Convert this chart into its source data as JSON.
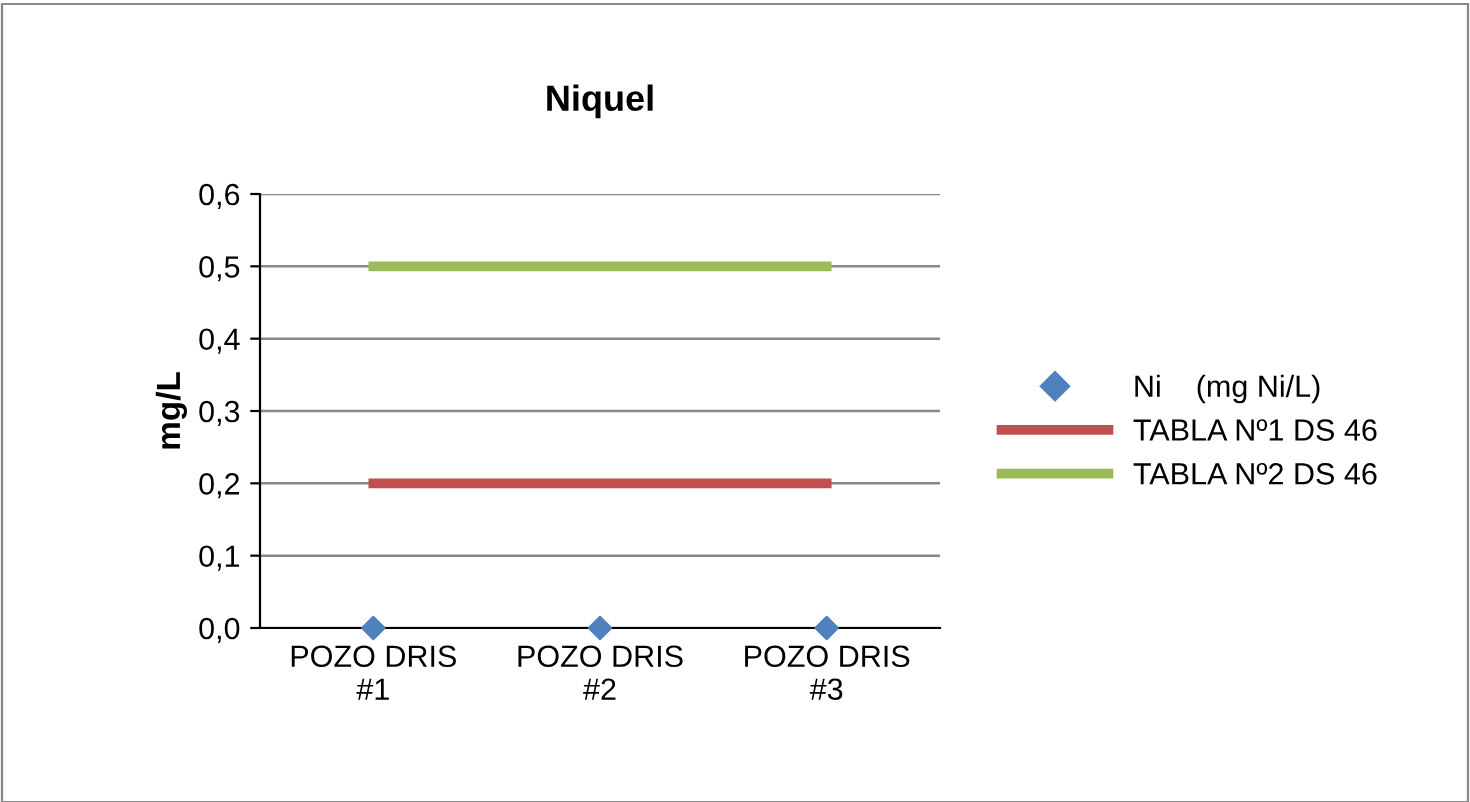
{
  "chart_data": {
    "type": "line",
    "title": "Niquel",
    "ylabel": "mg/L",
    "categories": [
      "POZO DRIS\n#1",
      "POZO DRIS\n#2",
      "POZO DRIS\n#3"
    ],
    "series": [
      {
        "name": "Ni    (mg Ni/L)",
        "type": "scatter",
        "marker": "diamond",
        "color": "#4f81bd",
        "values": [
          0,
          0,
          0
        ]
      },
      {
        "name": "TABLA Nº1 DS 46",
        "marker": "none",
        "color": "#c0504d",
        "values": [
          0.2,
          0.2,
          0.2
        ]
      },
      {
        "name": "TABLA Nº2 DS 46",
        "marker": "none",
        "color": "#9bbb59",
        "values": [
          0.5,
          0.5,
          0.5
        ]
      }
    ],
    "ylim": [
      0,
      0.6
    ],
    "yticks": [
      {
        "value": 0,
        "label": "0,0"
      },
      {
        "value": 0.1,
        "label": "0,1"
      },
      {
        "value": 0.2,
        "label": "0,2"
      },
      {
        "value": 0.3,
        "label": "0,3"
      },
      {
        "value": 0.4,
        "label": "0,4"
      },
      {
        "value": 0.5,
        "label": "0,5"
      },
      {
        "value": 0.6,
        "label": "0,6"
      }
    ],
    "grid": "y",
    "legend": "right"
  }
}
